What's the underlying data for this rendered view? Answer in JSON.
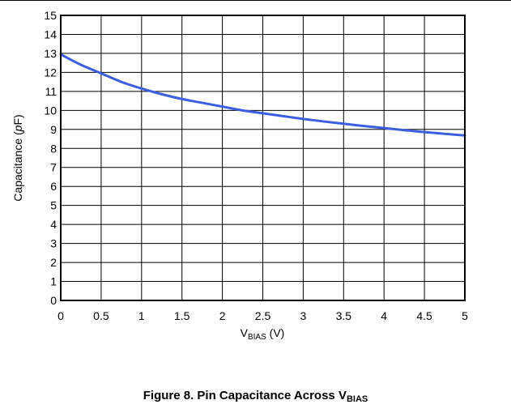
{
  "figure": {
    "caption_prefix": "Figure 8. Pin Capacitance Across V",
    "caption_sub": "BIAS"
  },
  "chart_data": {
    "type": "line",
    "xlabel_main": "V",
    "xlabel_sub": "BIAS",
    "xlabel_suffix": " (V)",
    "ylabel_prefix": "Capacitance (",
    "ylabel_italic": "p",
    "ylabel_suffix": "F)",
    "xlim": [
      0,
      5
    ],
    "ylim": [
      0,
      15
    ],
    "x_ticks": [
      0,
      0.5,
      1,
      1.5,
      2,
      2.5,
      3,
      3.5,
      4,
      4.5,
      5
    ],
    "y_ticks": [
      0,
      1,
      2,
      3,
      4,
      5,
      6,
      7,
      8,
      9,
      10,
      11,
      12,
      13,
      14,
      15
    ],
    "grid": true,
    "series": [
      {
        "color": "#3b5fe0",
        "x": [
          0,
          0.25,
          0.5,
          0.75,
          1,
          1.25,
          1.5,
          1.75,
          2,
          2.25,
          2.5,
          2.75,
          3,
          3.25,
          3.5,
          3.75,
          4,
          4.25,
          4.5,
          4.75,
          5
        ],
        "y": [
          12.95,
          12.4,
          11.95,
          11.5,
          11.15,
          10.85,
          10.6,
          10.4,
          10.2,
          10.0,
          9.85,
          9.7,
          9.55,
          9.42,
          9.3,
          9.18,
          9.07,
          8.96,
          8.86,
          8.77,
          8.68
        ]
      }
    ]
  }
}
